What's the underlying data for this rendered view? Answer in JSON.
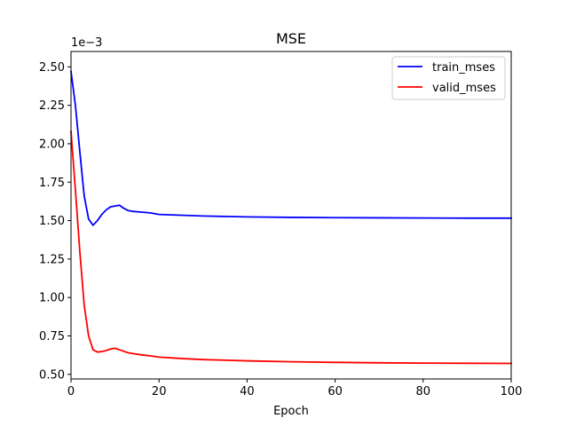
{
  "chart_data": {
    "type": "line",
    "title": "MSE",
    "xlabel": "Epoch",
    "ylabel": "",
    "y_offset_label": "1e−3",
    "xlim": [
      0,
      100
    ],
    "ylim": [
      0.47,
      2.6
    ],
    "x_ticks": [
      0,
      20,
      40,
      60,
      80,
      100
    ],
    "x_tick_labels": [
      "0",
      "20",
      "40",
      "60",
      "80",
      "100"
    ],
    "y_ticks": [
      0.5,
      0.75,
      1.0,
      1.25,
      1.5,
      1.75,
      2.0,
      2.25,
      2.5
    ],
    "y_tick_labels": [
      "0.50",
      "0.75",
      "1.00",
      "1.25",
      "1.50",
      "1.75",
      "2.00",
      "2.25",
      "2.50"
    ],
    "grid": false,
    "legend_position": "top-right",
    "series": [
      {
        "name": "train_mses",
        "color": "#0000ff",
        "x": [
          0,
          1,
          2,
          3,
          4,
          5,
          6,
          7,
          8,
          9,
          10,
          11,
          12,
          13,
          14,
          16,
          18,
          20,
          25,
          30,
          40,
          50,
          60,
          70,
          80,
          90,
          100
        ],
        "y": [
          2.47,
          2.25,
          1.95,
          1.66,
          1.51,
          1.47,
          1.5,
          1.54,
          1.57,
          1.59,
          1.595,
          1.6,
          1.58,
          1.565,
          1.56,
          1.555,
          1.55,
          1.54,
          1.535,
          1.53,
          1.524,
          1.521,
          1.519,
          1.518,
          1.517,
          1.516,
          1.516
        ]
      },
      {
        "name": "valid_mses",
        "color": "#ff0000",
        "x": [
          0,
          1,
          2,
          3,
          4,
          5,
          6,
          7,
          8,
          9,
          10,
          11,
          12,
          13,
          14,
          16,
          18,
          20,
          25,
          30,
          40,
          50,
          60,
          70,
          80,
          90,
          100
        ],
        "y": [
          2.08,
          1.7,
          1.3,
          0.95,
          0.75,
          0.66,
          0.645,
          0.648,
          0.655,
          0.665,
          0.67,
          0.66,
          0.65,
          0.64,
          0.635,
          0.627,
          0.62,
          0.612,
          0.603,
          0.596,
          0.588,
          0.582,
          0.578,
          0.575,
          0.573,
          0.572,
          0.571
        ]
      }
    ]
  }
}
